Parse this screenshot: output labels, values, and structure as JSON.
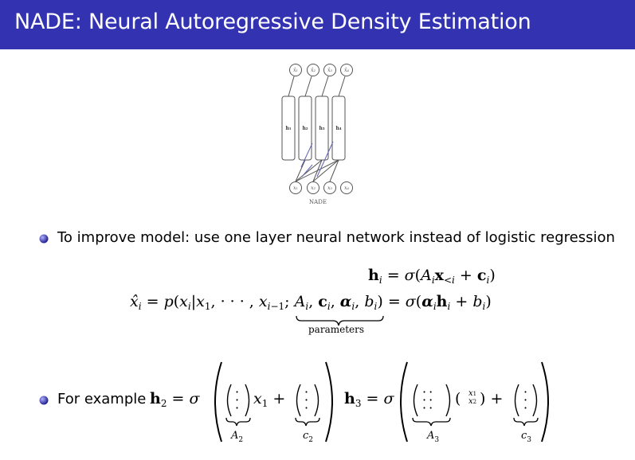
{
  "slide": {
    "title": "NADE: Neural Autoregressive Density Estimation",
    "theme_color": "#3333b2"
  },
  "figure": {
    "top_nodes": [
      "x̂₁",
      "x̂₂",
      "x̂₃",
      "x̂₄"
    ],
    "hidden_units": [
      "h₁",
      "h₂",
      "h₃",
      "h₄"
    ],
    "bottom_nodes": [
      "x₁",
      "x₂",
      "x₃",
      "x₄"
    ],
    "caption": "NADE"
  },
  "bullets": [
    {
      "text": "To improve model:  use one layer neural network instead of logistic regression"
    },
    {
      "text": "For example"
    }
  ],
  "equation": {
    "parameters_label": "parameters"
  },
  "example": {
    "A2_label": "A",
    "A2_sub": "2",
    "c2_label": "c",
    "c2_sub": "2",
    "A3_label": "A",
    "A3_sub": "3",
    "c3_label": "c",
    "c3_sub": "3"
  }
}
